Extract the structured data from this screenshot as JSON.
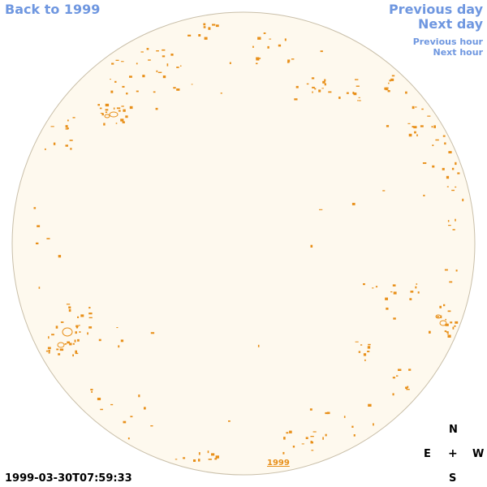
{
  "nav": {
    "back": "Back to 1999",
    "previous_day": "Previous day",
    "next_day": "Next day",
    "previous_hour": "Previous hour",
    "next_hour": "Next hour"
  },
  "compass": {
    "north": "N",
    "east": "E",
    "center": "+",
    "west": "W",
    "south": "S"
  },
  "timestamp": "1999-03-30T07:59:33",
  "year_link": "1999",
  "colors": {
    "disk_fill": "#fef9ee",
    "disk_edge": "#c9bfa9",
    "feature": "#e8901a",
    "nav_link": "#6f97e0"
  }
}
